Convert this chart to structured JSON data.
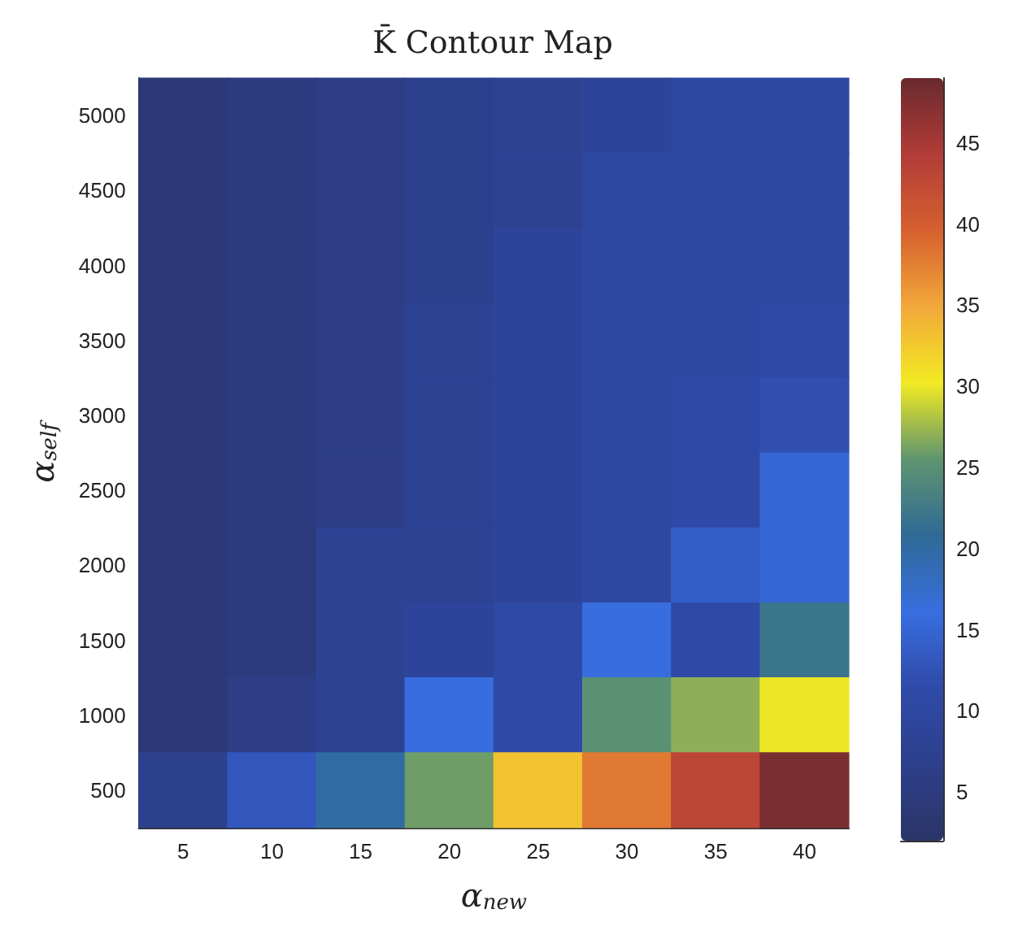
{
  "chart_data": {
    "type": "heatmap",
    "title": "K̄ Contour Map",
    "xlabel": "α$_{new}$",
    "ylabel": "α$_{self}$",
    "categories": [
      "5",
      "10",
      "15",
      "20",
      "25",
      "30",
      "35",
      "40"
    ],
    "y_categories": [
      "5000",
      "4500",
      "4000",
      "3500",
      "3000",
      "2500",
      "2000",
      "1500",
      "1000",
      "500"
    ],
    "cells": [
      [
        4,
        5,
        6,
        7,
        8,
        9,
        10,
        10
      ],
      [
        4,
        5,
        6,
        7,
        8,
        10,
        10,
        10
      ],
      [
        4,
        5,
        6,
        7,
        9,
        10,
        10,
        10
      ],
      [
        4,
        5,
        6,
        8,
        9,
        10,
        10,
        11
      ],
      [
        4,
        5,
        6,
        8,
        9,
        10,
        11,
        12
      ],
      [
        4,
        5,
        6,
        8,
        9,
        10,
        11,
        15
      ],
      [
        4,
        5,
        8,
        8,
        9,
        10,
        14,
        15
      ],
      [
        4,
        5,
        8,
        9,
        11,
        16,
        11,
        22
      ],
      [
        4,
        6,
        8,
        16,
        11,
        25,
        27,
        30
      ],
      [
        7,
        13,
        20,
        26,
        33,
        38,
        43,
        48
      ]
    ],
    "clim": [
      2,
      49
    ],
    "cticks": [
      5,
      10,
      15,
      20,
      25,
      30,
      35,
      40,
      45
    ]
  }
}
